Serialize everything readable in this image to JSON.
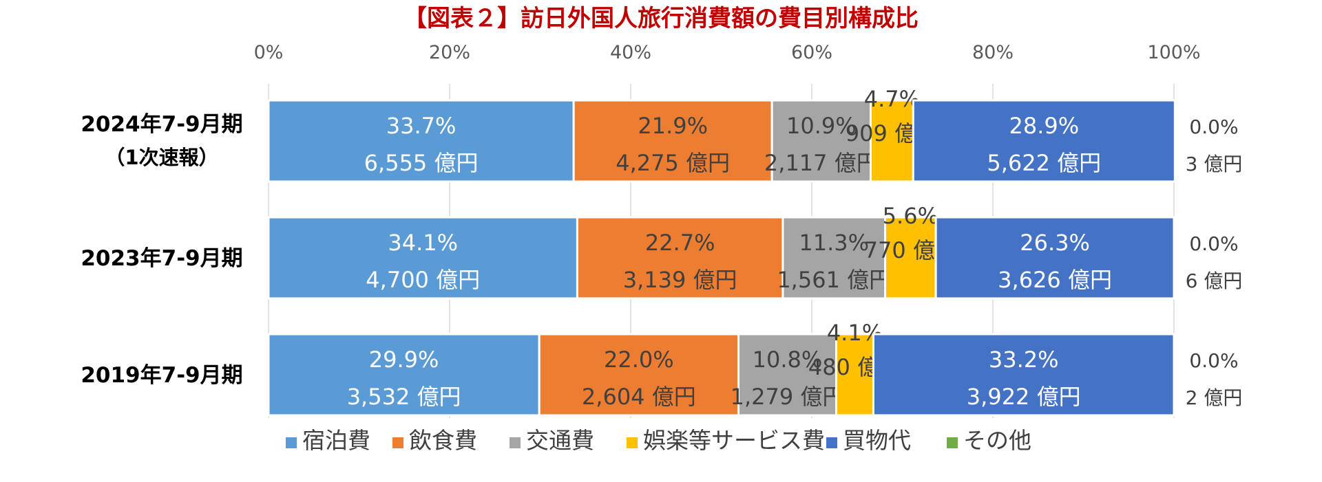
{
  "chart_data": {
    "type": "bar",
    "orientation": "horizontal",
    "stacked": "percent",
    "title": "【図表２】訪日外国人旅行消費額の費目別構成比",
    "title_color": "#c00000",
    "x_ticks": [
      "0%",
      "20%",
      "40%",
      "60%",
      "80%",
      "100%"
    ],
    "xlim": [
      0,
      100
    ],
    "grid": "vertical",
    "legend_position": "bottom",
    "unit_suffix": " 億円",
    "categories": [
      {
        "line1": "2024年7-9月期",
        "line2": "（1次速報）"
      },
      {
        "line1": "2023年7-9月期",
        "line2": ""
      },
      {
        "line1": "2019年7-9月期",
        "line2": ""
      }
    ],
    "series": [
      {
        "name": "宿泊費",
        "color": "#5b9bd5",
        "label_color": "#ffffff",
        "percent_labels": [
          "33.7%",
          "34.1%",
          "29.9%"
        ],
        "percents": [
          33.7,
          34.1,
          29.9
        ],
        "amounts": [
          "6,555",
          "4,700",
          "3,532"
        ]
      },
      {
        "name": "飲食費",
        "color": "#ed7d31",
        "label_color": "#404040",
        "percent_labels": [
          "21.9%",
          "22.7%",
          "22.0%"
        ],
        "percents": [
          21.9,
          22.7,
          22.0
        ],
        "amounts": [
          "4,275",
          "3,139",
          "2,604"
        ]
      },
      {
        "name": "交通費",
        "color": "#a5a5a5",
        "label_color": "#404040",
        "percent_labels": [
          "10.9%",
          "11.3%",
          "10.8%"
        ],
        "percents": [
          10.9,
          11.3,
          10.8
        ],
        "amounts": [
          "2,117",
          "1,561",
          "1,279"
        ]
      },
      {
        "name": "娯楽等サービス費",
        "color": "#ffc000",
        "label_color": "#404040",
        "percent_labels": [
          "4.7%",
          "5.6%",
          "4.1%"
        ],
        "percents": [
          4.7,
          5.6,
          4.1
        ],
        "amounts": [
          "909",
          "770",
          "480"
        ]
      },
      {
        "name": "買物代",
        "color": "#4472c4",
        "label_color": "#ffffff",
        "percent_labels": [
          "28.9%",
          "26.3%",
          "33.2%"
        ],
        "percents": [
          28.9,
          26.3,
          33.2
        ],
        "amounts": [
          "5,622",
          "3,626",
          "3,922"
        ]
      },
      {
        "name": "その他",
        "color": "#70ad47",
        "label_color": "#404040",
        "percent_labels": [
          "0.0%",
          "0.0%",
          "0.0%"
        ],
        "percents": [
          0.0,
          0.0,
          0.0
        ],
        "amounts": [
          "3",
          "6",
          "2"
        ]
      }
    ]
  }
}
